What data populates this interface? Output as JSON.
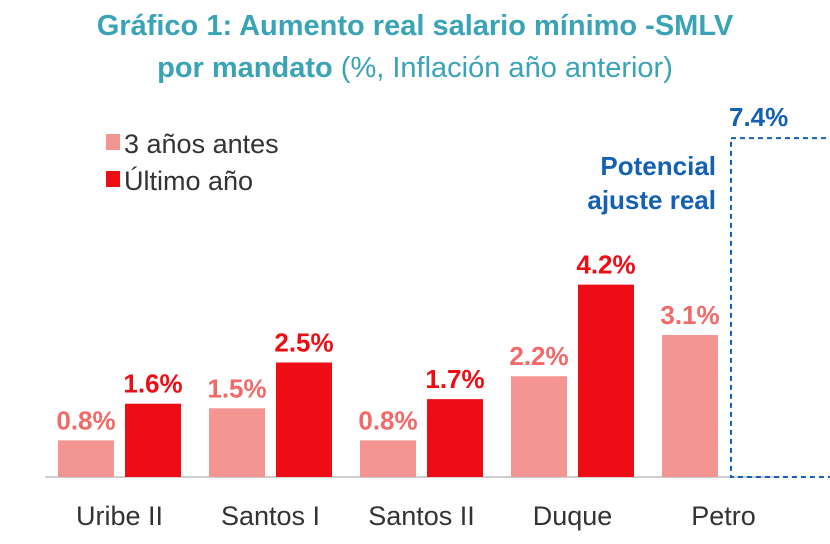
{
  "title": {
    "line1": "Gráfico 1: Aumento real salario mínimo -SMLV",
    "line2_bold": "por mandato",
    "line2_rest": " (%, Inflación año anterior)"
  },
  "colors": {
    "title": "#3aa3b5",
    "series_before": "#f49592",
    "series_last": "#ee0d14",
    "label_before": "#f26a68",
    "label_last": "#ee0d14",
    "annotation": "#1560b3"
  },
  "chart_data": {
    "type": "bar",
    "title": "Gráfico 1: Aumento real salario mínimo -SMLV por mandato (%, Inflación año anterior)",
    "categories": [
      "Uribe II",
      "Santos I",
      "Santos II",
      "Duque",
      "Petro"
    ],
    "series": [
      {
        "name": "3 años antes",
        "values": [
          0.8,
          1.5,
          0.8,
          2.2,
          3.1
        ],
        "labels": [
          "0.8%",
          "1.5%",
          "0.8%",
          "2.2%",
          "3.1%"
        ]
      },
      {
        "name": "Último año",
        "values": [
          1.6,
          2.5,
          1.7,
          4.2,
          7.4
        ],
        "labels": [
          "1.6%",
          "2.5%",
          "1.7%",
          "4.2%",
          "7.4%"
        ]
      }
    ],
    "annotation": {
      "text_line1": "Potencial",
      "text_line2": "ajuste real",
      "category": "Petro",
      "value": 7.4,
      "label": "7.4%"
    },
    "legend_position": "top-left",
    "grid": false,
    "ylim": [
      0,
      8
    ]
  }
}
